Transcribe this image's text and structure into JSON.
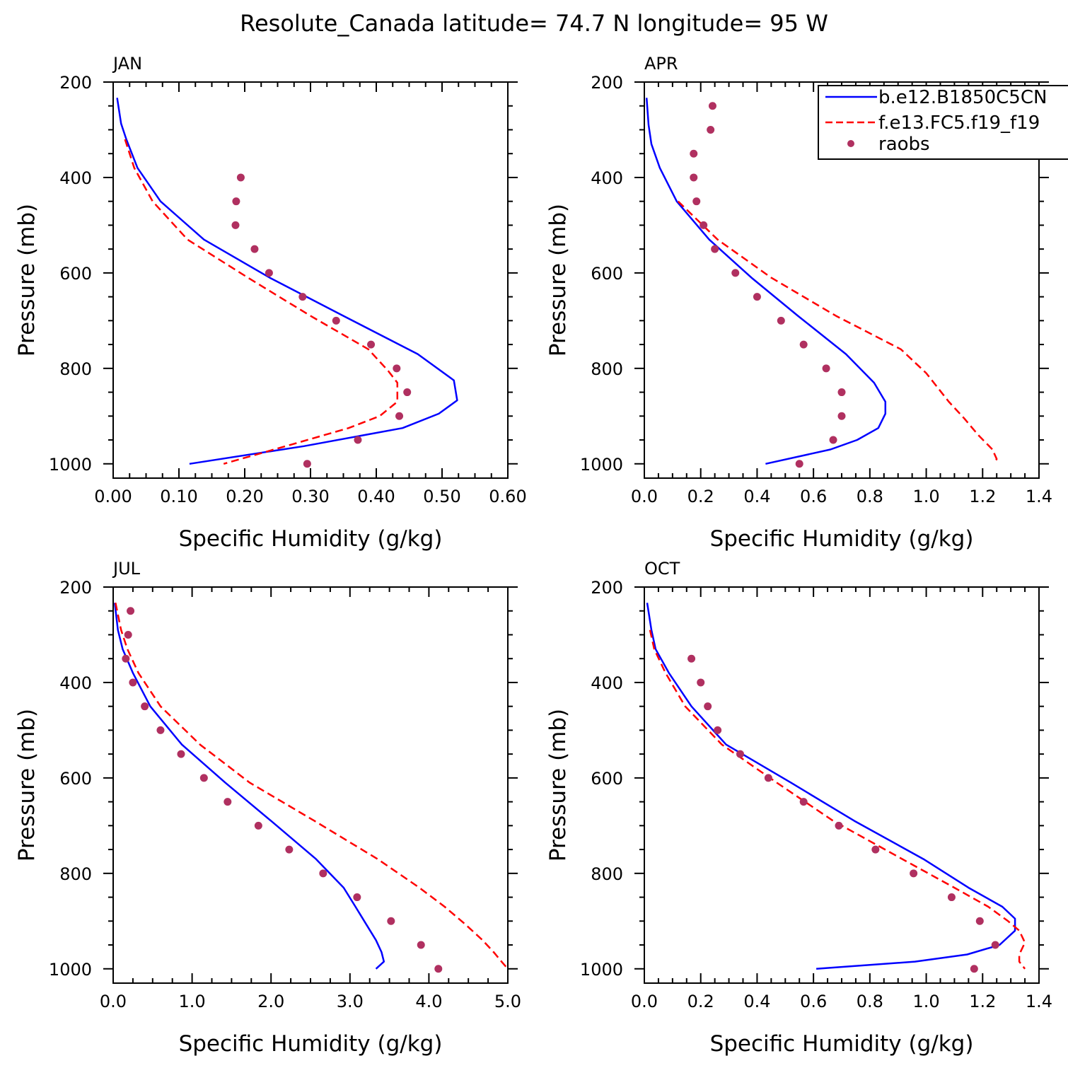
{
  "title": "Resolute_Canada  latitude= 74.7 N longitude= 95 W",
  "colors": {
    "model_b": "#0000ff",
    "model_f": "#ff0000",
    "raobs": "#b03060"
  },
  "legend": {
    "entries": [
      {
        "label": "b.e12.B1850C5CN",
        "style": "solid"
      },
      {
        "label": "f.e13.FC5.f19_f19",
        "style": "dashed"
      },
      {
        "label": "raobs",
        "style": "marker"
      }
    ]
  },
  "chart_data": [
    {
      "type": "line",
      "panel": "JAN",
      "xlabel": "Specific Humidity (g/kg)",
      "ylabel": "Pressure (mb)",
      "xlim": [
        0,
        0.6
      ],
      "ylim": [
        1000,
        200
      ],
      "xticks": [
        "0.00",
        "0.10",
        "0.20",
        "0.30",
        "0.40",
        "0.50",
        "0.60"
      ],
      "yticks": [
        "200",
        "400",
        "600",
        "800",
        "1000"
      ],
      "series": [
        {
          "name": "b.e12.B1850C5CN",
          "style": "solid",
          "p": [
            233,
            287,
            320,
            380,
            450,
            530,
            610,
            690,
            770,
            825,
            867,
            895,
            925,
            963,
            1000
          ],
          "q": [
            0.006,
            0.012,
            0.02,
            0.037,
            0.072,
            0.138,
            0.238,
            0.35,
            0.463,
            0.518,
            0.523,
            0.495,
            0.44,
            0.29,
            0.116
          ]
        },
        {
          "name": "f.e13.FC5.f19_f19",
          "style": "dashed",
          "p": [
            320,
            380,
            450,
            530,
            610,
            690,
            760,
            805,
            830,
            870,
            900,
            925,
            960,
            1000
          ],
          "q": [
            0.018,
            0.032,
            0.06,
            0.113,
            0.205,
            0.3,
            0.388,
            0.418,
            0.432,
            0.432,
            0.405,
            0.358,
            0.27,
            0.168
          ]
        },
        {
          "name": "raobs",
          "style": "marker",
          "p": [
            400,
            450,
            500,
            550,
            600,
            650,
            700,
            750,
            800,
            850,
            900,
            950,
            1000
          ],
          "q": [
            0.194,
            0.187,
            0.186,
            0.215,
            0.237,
            0.288,
            0.339,
            0.392,
            0.431,
            0.447,
            0.435,
            0.372,
            0.295
          ]
        }
      ]
    },
    {
      "type": "line",
      "panel": "APR",
      "xlabel": "Specific Humidity (g/kg)",
      "ylabel": "Pressure (mb)",
      "xlim": [
        0,
        1.4
      ],
      "ylim": [
        1000,
        200
      ],
      "xticks": [
        "0.0",
        "0.2",
        "0.4",
        "0.6",
        "0.8",
        "1.0",
        "1.2",
        "1.4"
      ],
      "yticks": [
        "200",
        "400",
        "600",
        "800",
        "1000"
      ],
      "series": [
        {
          "name": "b.e12.B1850C5CN",
          "style": "solid",
          "p": [
            233,
            290,
            330,
            380,
            450,
            530,
            610,
            690,
            770,
            830,
            870,
            895,
            925,
            950,
            970,
            1000
          ],
          "q": [
            0.008,
            0.015,
            0.025,
            0.055,
            0.115,
            0.23,
            0.38,
            0.545,
            0.715,
            0.815,
            0.855,
            0.855,
            0.83,
            0.755,
            0.66,
            0.43
          ]
        },
        {
          "name": "f.e13.FC5.f19_f19",
          "style": "dashed",
          "p": [
            450,
            530,
            610,
            690,
            760,
            810,
            870,
            905,
            940,
            970,
            990,
            1000
          ],
          "q": [
            0.12,
            0.26,
            0.45,
            0.68,
            0.91,
            1.0,
            1.08,
            1.135,
            1.185,
            1.235,
            1.25,
            1.24
          ]
        },
        {
          "name": "raobs",
          "style": "marker",
          "p": [
            250,
            300,
            350,
            400,
            450,
            500,
            550,
            600,
            650,
            700,
            750,
            800,
            850,
            900,
            950,
            1000
          ],
          "q": [
            0.242,
            0.235,
            0.175,
            0.175,
            0.185,
            0.21,
            0.25,
            0.323,
            0.4,
            0.485,
            0.565,
            0.645,
            0.7,
            0.7,
            0.67,
            0.55
          ]
        }
      ]
    },
    {
      "type": "line",
      "panel": "JUL",
      "xlabel": "Specific Humidity (g/kg)",
      "ylabel": "Pressure (mb)",
      "xlim": [
        0,
        5.0
      ],
      "ylim": [
        1000,
        200
      ],
      "xticks": [
        "0.0",
        "1.0",
        "2.0",
        "3.0",
        "4.0",
        "5.0"
      ],
      "yticks": [
        "200",
        "400",
        "600",
        "800",
        "1000"
      ],
      "series": [
        {
          "name": "b.e12.B1850C5CN",
          "style": "solid",
          "p": [
            233,
            290,
            330,
            380,
            450,
            530,
            610,
            690,
            770,
            830,
            870,
            905,
            940,
            965,
            985,
            1000
          ],
          "q": [
            0.02,
            0.06,
            0.12,
            0.25,
            0.47,
            0.87,
            1.42,
            2.0,
            2.57,
            2.92,
            3.07,
            3.2,
            3.33,
            3.4,
            3.43,
            3.33
          ]
        },
        {
          "name": "f.e13.FC5.f19_f19",
          "style": "dashed",
          "p": [
            233,
            290,
            330,
            380,
            450,
            530,
            610,
            690,
            770,
            830,
            870,
            905,
            940,
            965,
            985,
            1000
          ],
          "q": [
            0.03,
            0.1,
            0.18,
            0.32,
            0.6,
            1.1,
            1.73,
            2.55,
            3.35,
            3.88,
            4.2,
            4.45,
            4.68,
            4.82,
            4.92,
            5.0
          ]
        },
        {
          "name": "raobs",
          "style": "marker",
          "p": [
            250,
            300,
            350,
            400,
            450,
            500,
            550,
            600,
            650,
            700,
            750,
            800,
            850,
            900,
            950,
            1000
          ],
          "q": [
            0.22,
            0.19,
            0.16,
            0.25,
            0.4,
            0.6,
            0.86,
            1.15,
            1.45,
            1.84,
            2.23,
            2.66,
            3.09,
            3.52,
            3.9,
            4.12
          ]
        }
      ]
    },
    {
      "type": "line",
      "panel": "OCT",
      "xlabel": "Specific Humidity (g/kg)",
      "ylabel": "Pressure (mb)",
      "xlim": [
        0,
        1.4
      ],
      "ylim": [
        1000,
        200
      ],
      "xticks": [
        "0.0",
        "0.2",
        "0.4",
        "0.6",
        "0.8",
        "1.0",
        "1.2",
        "1.4"
      ],
      "yticks": [
        "200",
        "400",
        "600",
        "800",
        "1000"
      ],
      "series": [
        {
          "name": "b.e12.B1850C5CN",
          "style": "solid",
          "p": [
            233,
            290,
            330,
            380,
            450,
            530,
            610,
            690,
            770,
            830,
            870,
            895,
            920,
            950,
            970,
            985,
            1000
          ],
          "q": [
            0.01,
            0.025,
            0.04,
            0.087,
            0.167,
            0.29,
            0.52,
            0.745,
            0.99,
            1.15,
            1.27,
            1.315,
            1.315,
            1.26,
            1.145,
            0.96,
            0.61
          ]
        },
        {
          "name": "f.e13.FC5.f19_f19",
          "style": "dashed",
          "p": [
            290,
            330,
            380,
            450,
            530,
            610,
            690,
            770,
            830,
            870,
            900,
            920,
            945,
            970,
            985,
            1000
          ],
          "q": [
            0.02,
            0.035,
            0.075,
            0.145,
            0.275,
            0.47,
            0.67,
            0.915,
            1.1,
            1.22,
            1.29,
            1.33,
            1.35,
            1.33,
            1.33,
            1.35
          ]
        },
        {
          "name": "raobs",
          "style": "marker",
          "p": [
            350,
            400,
            450,
            500,
            550,
            600,
            650,
            700,
            750,
            800,
            850,
            900,
            950,
            1000
          ],
          "q": [
            0.167,
            0.2,
            0.225,
            0.26,
            0.34,
            0.44,
            0.565,
            0.69,
            0.82,
            0.955,
            1.09,
            1.19,
            1.245,
            1.17
          ]
        }
      ]
    }
  ]
}
